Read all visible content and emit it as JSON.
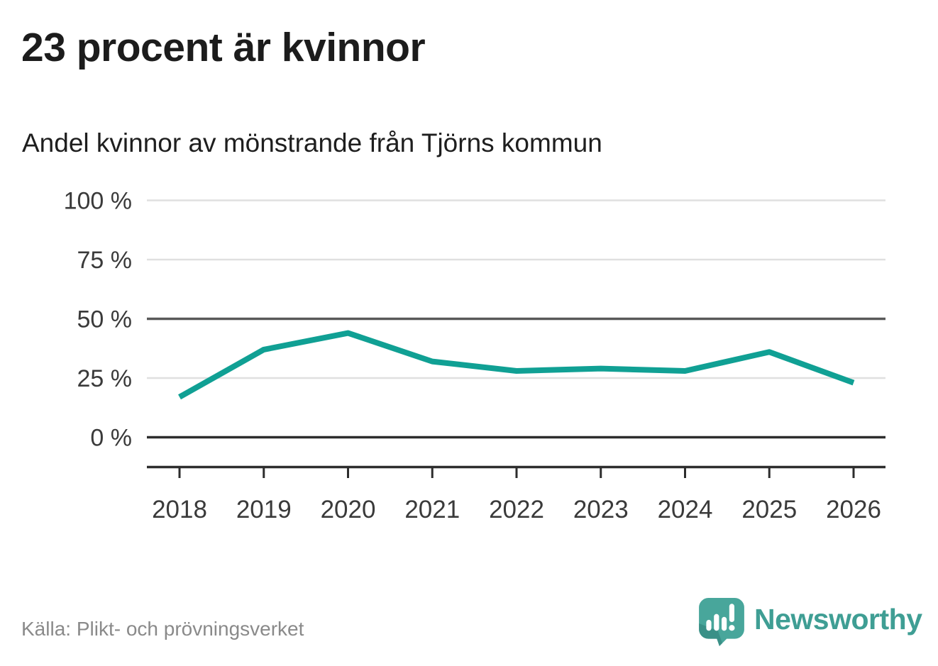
{
  "header": {
    "title": "23 procent är kvinnor",
    "subtitle": "Andel kvinnor av mönstrande från Tjörns kommun"
  },
  "chart_data": {
    "type": "line",
    "title": "23 procent är kvinnor",
    "subtitle": "Andel kvinnor av mönstrande från Tjörns kommun",
    "categories": [
      "2018",
      "2019",
      "2020",
      "2021",
      "2022",
      "2023",
      "2024",
      "2025",
      "2026"
    ],
    "series": [
      {
        "name": "Andel kvinnor av mönstrande",
        "values": [
          17,
          37,
          44,
          32,
          28,
          29,
          28,
          36,
          23
        ]
      }
    ],
    "unit": "%",
    "xlabel": "",
    "ylabel": "",
    "ylim": [
      0,
      100
    ],
    "yticks": [
      0,
      25,
      50,
      75,
      100
    ],
    "ytick_suffix": " %",
    "grid": "horizontal",
    "legend": "none",
    "emphasized_gridlines": [
      0,
      50
    ]
  },
  "footer": {
    "source": "Källa: Plikt- och prövningsverket",
    "brand": "Newsworthy"
  },
  "colors": {
    "line": "#10a094",
    "grid_light": "#e0e0e0",
    "grid_mid": "#595959",
    "axis_dark": "#2d2d2d",
    "tick_label": "#3a3a3a",
    "title_text": "#1c1c1c",
    "source_text": "#8a8a8a",
    "logo_teal": "#48a69b",
    "logo_dark": "#2f7d76",
    "wordmark_teal": "#3f9e94"
  }
}
